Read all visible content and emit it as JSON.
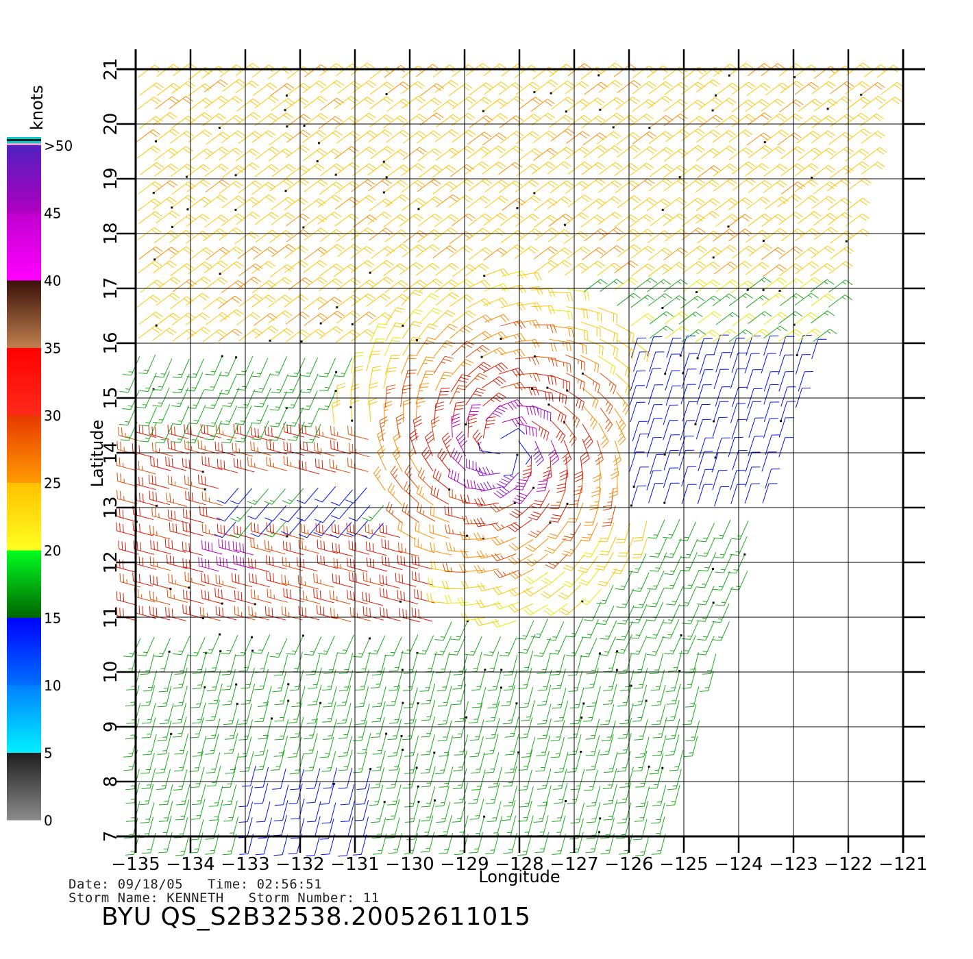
{
  "colorbar": {
    "unit_label": "knots",
    "bands": [
      {
        "from": 0,
        "to": 5,
        "colors": [
          "#8c8c8c",
          "#1e1e1e"
        ]
      },
      {
        "from": 5,
        "to": 10,
        "colors": [
          "#00f0ff",
          "#0080ff"
        ]
      },
      {
        "from": 10,
        "to": 15,
        "colors": [
          "#0070ff",
          "#0000ff"
        ]
      },
      {
        "from": 15,
        "to": 20,
        "colors": [
          "#006400",
          "#00ff20"
        ]
      },
      {
        "from": 20,
        "to": 25,
        "colors": [
          "#ffff20",
          "#ffc000"
        ]
      },
      {
        "from": 25,
        "to": 30,
        "colors": [
          "#ff9a00",
          "#e83800"
        ]
      },
      {
        "from": 30,
        "to": 35,
        "colors": [
          "#ff2a1a",
          "#ff0000"
        ]
      },
      {
        "from": 35,
        "to": 40,
        "colors": [
          "#c08050",
          "#3a1008"
        ]
      },
      {
        "from": 40,
        "to": 45,
        "colors": [
          "#ff00ff",
          "#c000d0"
        ]
      },
      {
        "from": 45,
        "to": 50,
        "colors": [
          "#b000c0",
          "#5020c0"
        ]
      }
    ],
    "tick_labels": [
      "0",
      "5",
      "10",
      "15",
      "20",
      "25",
      "30",
      "35",
      "40",
      "45",
      ">50"
    ],
    "top_stripes": [
      "#ff99cc",
      "#00cccc",
      "#222222",
      "#00cccc"
    ]
  },
  "chart_data": {
    "type": "wind-barb",
    "xlabel": "Longitude",
    "ylabel": "Latitude",
    "xlim": [
      -135,
      -121
    ],
    "ylim": [
      7,
      21
    ],
    "x_tick_labels": [
      "−135",
      "−134",
      "−133",
      "−132",
      "−131",
      "−130",
      "−129",
      "−128",
      "−127",
      "−126",
      "−125",
      "−124",
      "−123",
      "−122",
      "−121"
    ],
    "y_tick_labels": [
      "7",
      "8",
      "9",
      "10",
      "11",
      "12",
      "13",
      "14",
      "15",
      "16",
      "17",
      "18",
      "19",
      "20",
      "21"
    ],
    "grid": true,
    "units": "knots",
    "storm_center": {
      "lon": -128.3,
      "lat": 14.1
    },
    "fields": [
      {
        "name": "cyclonic circulation",
        "center_lon": -128.3,
        "center_lat": 14.1,
        "max_knots": 45
      },
      {
        "name": "westerly band",
        "lon_range": [
          -135,
          -129
        ],
        "lat_range": [
          11,
          14
        ],
        "knots": 33
      },
      {
        "name": "northeast trades",
        "lat_range": [
          16,
          21
        ],
        "knots": 22
      },
      {
        "name": "southern flow",
        "lat_range": [
          7,
          10.5
        ],
        "knots": 16
      }
    ],
    "swath_right_edge": [
      {
        "lat": 21.0,
        "lon": -121.2
      },
      {
        "lat": 16.0,
        "lon": -122.5
      },
      {
        "lat": 12.0,
        "lon": -123.8
      },
      {
        "lat": 7.0,
        "lon": -125.3
      }
    ]
  },
  "info": {
    "date_line": "Date: 09/18/05   Time: 02:56:51",
    "storm_line": "Storm Name: KENNETH   Storm Number: 11",
    "product_id": "BYU QS_S2B32538.20052611015"
  }
}
